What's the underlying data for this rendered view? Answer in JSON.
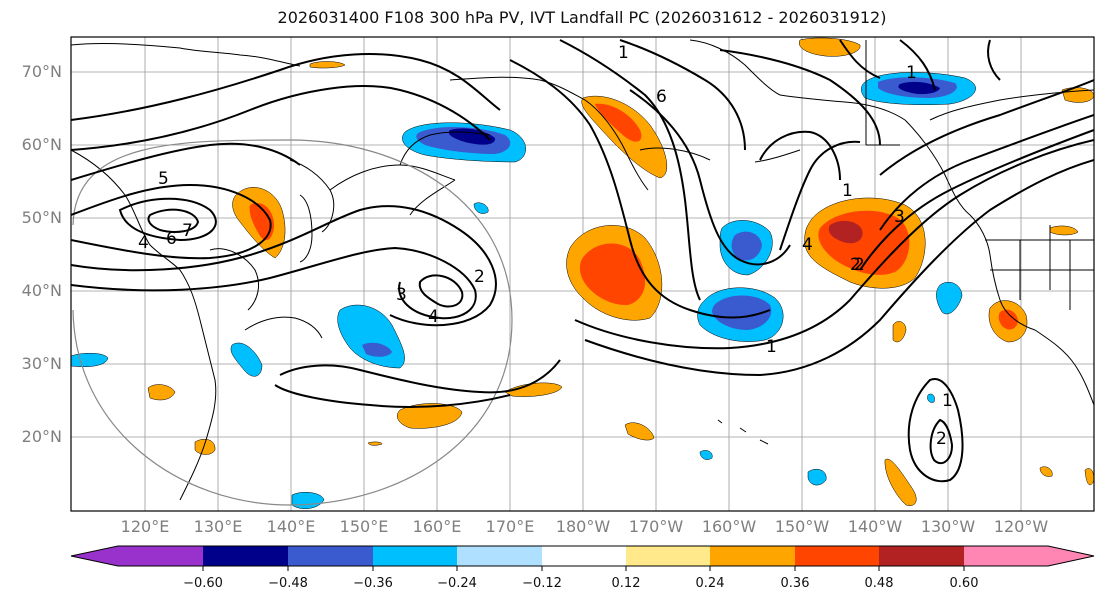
{
  "title": "2026031400 F108 300 hPa PV, IVT Landfall PC (2026031612 - 2026031912)",
  "lat_labels": [
    "70°N",
    "60°N",
    "50°N",
    "40°N",
    "30°N",
    "20°N"
  ],
  "lon_labels": [
    "120°E",
    "130°E",
    "140°E",
    "150°E",
    "160°E",
    "170°E",
    "180°W",
    "170°W",
    "160°W",
    "150°W",
    "140°W",
    "130°W",
    "120°W"
  ],
  "contour_labels": [
    "1",
    "6",
    "5",
    "7",
    "6",
    "4",
    "3",
    "2",
    "4",
    "1",
    "2",
    "4",
    "3",
    "2",
    "1",
    "1",
    "2",
    "1"
  ],
  "colorbar": {
    "colors": [
      "#9932cc",
      "#00008b",
      "#3a5bd0",
      "#00bfff",
      "#b0e0ff",
      "#ffffff",
      "#ffe98a",
      "#ffa500",
      "#ff4500",
      "#b22222",
      "#ff85b3"
    ],
    "ticks": [
      "−0.60",
      "−0.48",
      "−0.36",
      "−0.24",
      "−0.12",
      "0.12",
      "0.24",
      "0.36",
      "0.48",
      "0.60"
    ]
  }
}
